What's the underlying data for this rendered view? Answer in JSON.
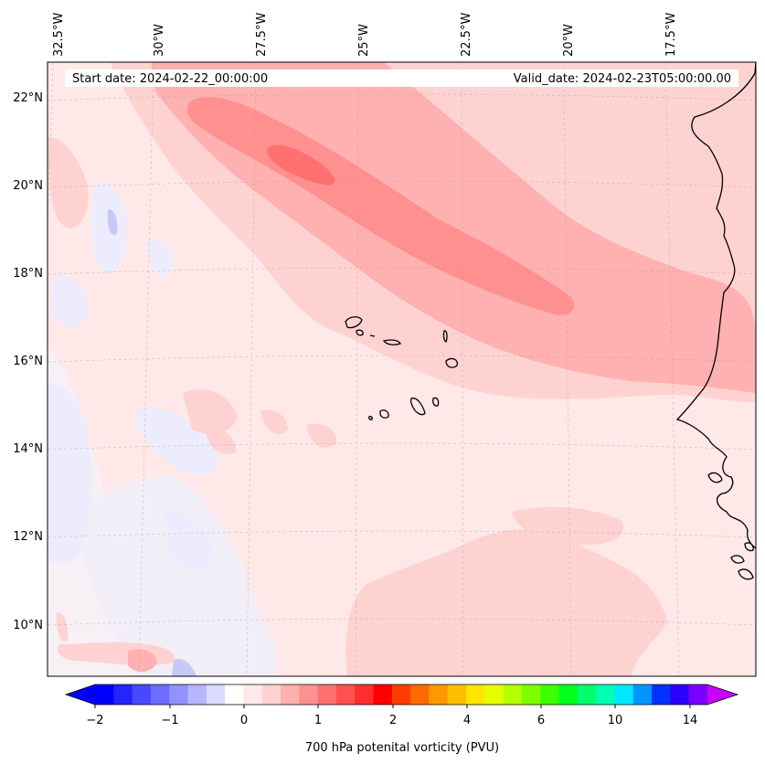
{
  "map": {
    "start_label": "Start date: 2024-02-22_00:00:00",
    "valid_label": "Valid_date: 2024-02-23T05:00:00.00",
    "lon_labels": [
      "32.5°W",
      "30°W",
      "27.5°W",
      "25°W",
      "22.5°W",
      "20°W",
      "17.5°W"
    ],
    "lat_labels": [
      "22°N",
      "20°N",
      "18°N",
      "16°N",
      "14°N",
      "12°N",
      "10°N"
    ],
    "field_base_color": "#ffe8e8",
    "coastline_color": "#000000"
  },
  "colorbar": {
    "label": "700 hPa potenital vorticity (PVU)",
    "tick_labels": [
      "−2",
      "−1",
      "0",
      "1",
      "2",
      "4",
      "6",
      "10",
      "14"
    ],
    "colors": [
      "#0000ff",
      "#2424ff",
      "#4848ff",
      "#6d6dff",
      "#9191ff",
      "#b6b6ff",
      "#dadaff",
      "#ffffff",
      "#ffe8e8",
      "#ffd2d2",
      "#ffb0b0",
      "#ff9090",
      "#ff7070",
      "#ff5050",
      "#ff2e2e",
      "#ff0000",
      "#ff3c00",
      "#ff6a00",
      "#ff9800",
      "#ffbf00",
      "#ffe600",
      "#e6ff00",
      "#b4ff00",
      "#7dff00",
      "#3cff00",
      "#00ff1e",
      "#00ff6e",
      "#00ffb4",
      "#00e8ff",
      "#0096ff",
      "#0032ff",
      "#2a00ff",
      "#7800ff"
    ],
    "under_color": "#0000ff",
    "over_color": "#c800ff"
  }
}
